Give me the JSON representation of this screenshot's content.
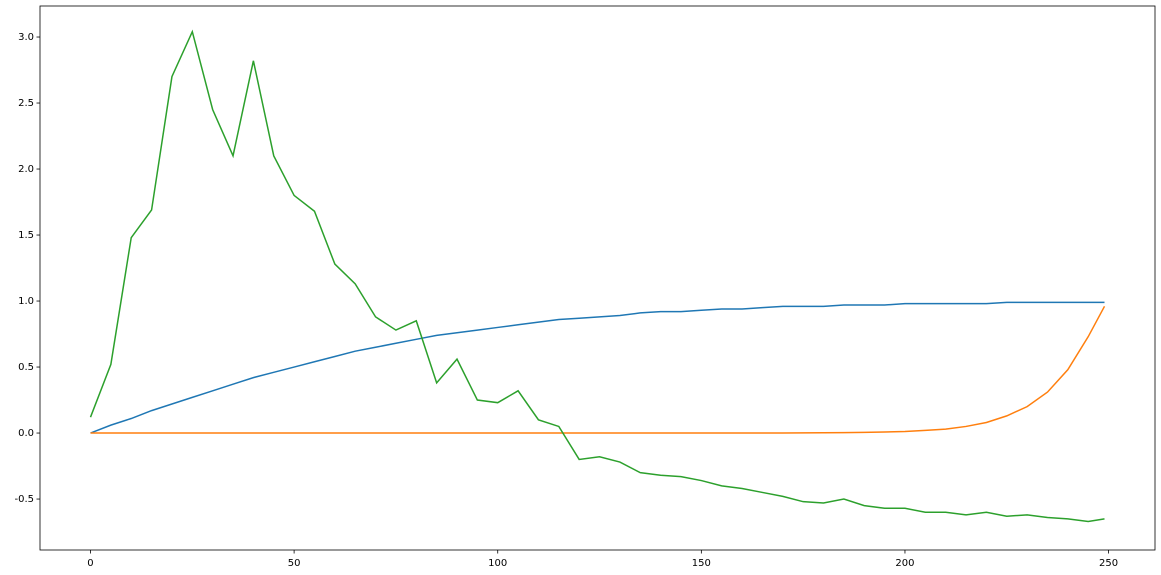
{
  "chart_data": {
    "type": "line",
    "x": [
      0,
      5,
      10,
      15,
      20,
      25,
      30,
      35,
      40,
      45,
      50,
      55,
      60,
      65,
      70,
      75,
      80,
      85,
      90,
      95,
      100,
      105,
      110,
      115,
      120,
      125,
      130,
      135,
      140,
      145,
      150,
      155,
      160,
      165,
      170,
      175,
      180,
      185,
      190,
      195,
      200,
      205,
      210,
      215,
      220,
      225,
      230,
      235,
      240,
      245,
      249
    ],
    "series": [
      {
        "color": "#1f77b4",
        "values": [
          0,
          0.06,
          0.11,
          0.17,
          0.22,
          0.27,
          0.32,
          0.37,
          0.42,
          0.46,
          0.5,
          0.54,
          0.58,
          0.62,
          0.65,
          0.68,
          0.71,
          0.74,
          0.76,
          0.78,
          0.8,
          0.82,
          0.84,
          0.86,
          0.87,
          0.88,
          0.89,
          0.91,
          0.92,
          0.92,
          0.93,
          0.94,
          0.94,
          0.95,
          0.96,
          0.96,
          0.96,
          0.97,
          0.97,
          0.97,
          0.98,
          0.98,
          0.98,
          0.98,
          0.98,
          0.99,
          0.99,
          0.99,
          0.99,
          0.99,
          0.99
        ]
      },
      {
        "color": "#ff7f0e",
        "values": [
          0,
          0,
          0,
          0,
          0,
          0,
          0,
          0,
          0,
          0,
          0,
          0,
          0,
          0,
          0,
          0,
          0,
          0,
          0,
          0,
          0,
          0,
          0,
          0,
          0,
          0,
          0,
          0,
          0,
          0,
          0,
          0,
          0,
          0,
          0,
          0.001,
          0.002,
          0.003,
          0.005,
          0.008,
          0.012,
          0.02,
          0.03,
          0.05,
          0.08,
          0.13,
          0.2,
          0.31,
          0.48,
          0.73,
          0.96
        ]
      },
      {
        "color": "#2ca02c",
        "values": [
          0.12,
          0.52,
          1.48,
          1.69,
          2.7,
          3.04,
          2.45,
          2.1,
          2.82,
          2.1,
          1.8,
          1.68,
          1.28,
          1.13,
          0.88,
          0.78,
          0.85,
          0.38,
          0.56,
          0.25,
          0.23,
          0.32,
          0.1,
          0.05,
          -0.2,
          -0.18,
          -0.22,
          -0.3,
          -0.32,
          -0.33,
          -0.36,
          -0.4,
          -0.42,
          -0.45,
          -0.48,
          -0.52,
          -0.53,
          -0.5,
          -0.55,
          -0.57,
          -0.57,
          -0.6,
          -0.6,
          -0.62,
          -0.6,
          -0.63,
          -0.62,
          -0.64,
          -0.65,
          -0.67,
          -0.65
        ]
      }
    ],
    "xlim": [
      -12.4,
      261.4
    ],
    "ylim": [
      -0.886,
      3.235
    ],
    "xticks": [
      0,
      50,
      100,
      150,
      200,
      250
    ],
    "yticks": [
      -0.5,
      {
        "value": 0,
        "label": "0.0"
      },
      0.5,
      {
        "value": 1,
        "label": "1.0"
      },
      1.5,
      {
        "value": 2,
        "label": "2.0"
      },
      2.5,
      {
        "value": 3,
        "label": "3.0"
      }
    ]
  }
}
